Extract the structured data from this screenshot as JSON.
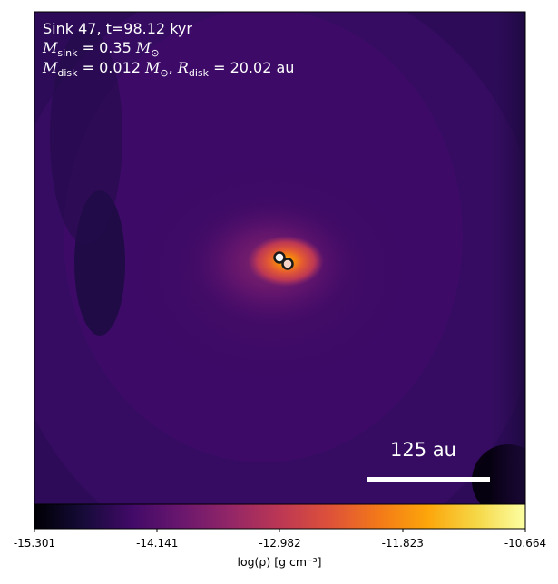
{
  "chart_data": {
    "type": "heatmap",
    "annotation": {
      "line1": "Sink 47, t=98.12 kyr",
      "msink_sym": "M",
      "msink_sub": "sink",
      "msink_val": "= 0.35",
      "msink_unit": "M",
      "mdisk_sym": "M",
      "mdisk_sub": "disk",
      "mdisk_val": "= 0.012",
      "mdisk_unit": "M",
      "rdisk_sym": "R",
      "rdisk_sub": "disk",
      "rdisk_val": "= 20.02 au",
      "sun_symbol": "⊙"
    },
    "scale_bar_label": "125 au",
    "colorbar": {
      "label": "log(ρ) [g cm⁻³]",
      "ticks": [
        "-15.301",
        "-14.141",
        "-12.982",
        "-11.823",
        "-10.664"
      ],
      "range": [
        -15.301,
        -10.664
      ],
      "colormap": "inferno"
    },
    "sinks": [
      {
        "name": "sink-primary"
      },
      {
        "name": "sink-secondary"
      }
    ]
  }
}
